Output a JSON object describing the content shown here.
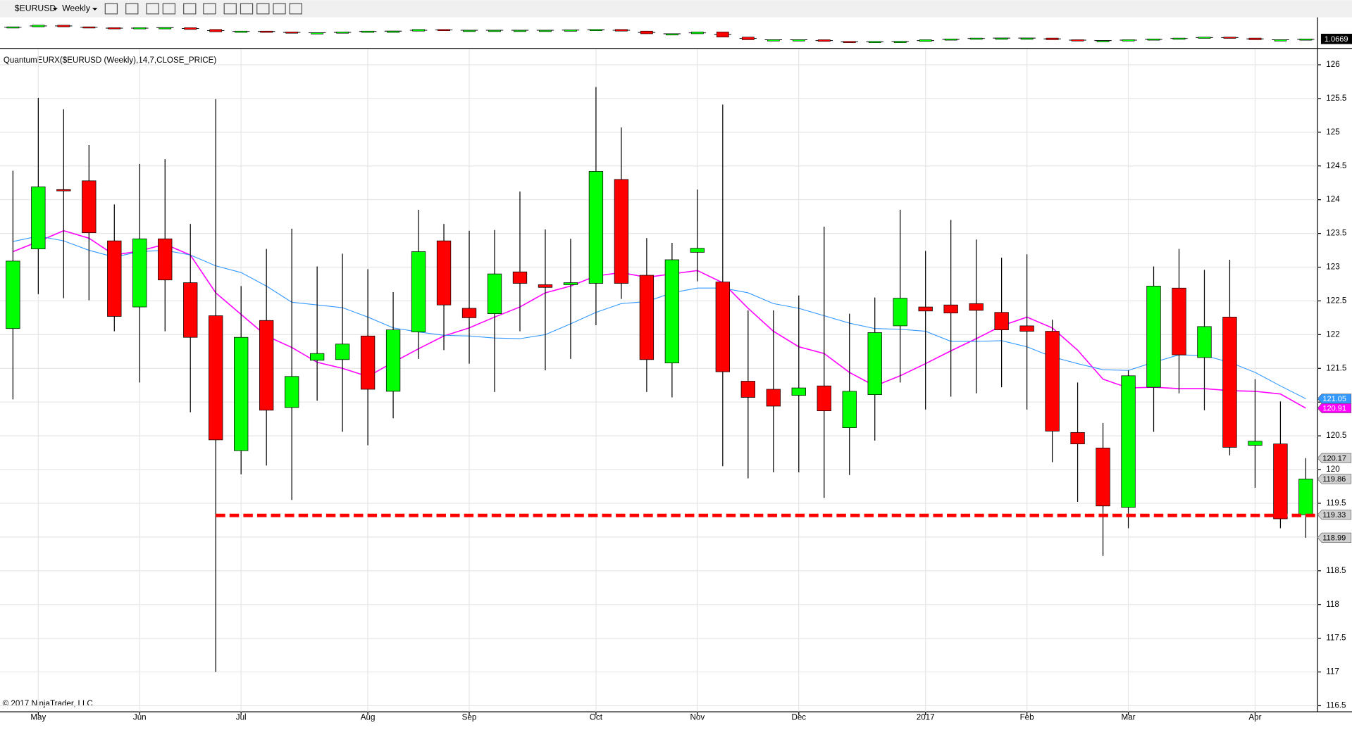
{
  "toolbar": {
    "symbol": "$EURUSD",
    "period": "Weekly"
  },
  "copyright": "© 2017 NinjaTrader, LLC",
  "chart_data": [
    {
      "type": "candlestick-mini",
      "up_color": "#00ff00",
      "down_color": "#ff0000",
      "ylim": [
        1.015,
        1.1866
      ],
      "open": [
        1.135,
        1.14,
        1.15,
        1.14,
        1.135,
        1.129,
        1.135,
        1.135,
        1.124,
        1.11,
        1.114,
        1.109,
        1.104,
        1.104,
        1.109,
        1.114,
        1.114,
        1.124,
        1.119,
        1.119,
        1.119,
        1.119,
        1.119,
        1.121,
        1.124,
        1.114,
        1.098,
        1.098,
        1.109,
        1.078,
        1.062,
        1.062,
        1.062,
        1.052,
        1.046,
        1.052,
        1.052,
        1.062,
        1.067,
        1.072,
        1.072,
        1.072,
        1.062,
        1.057,
        1.057,
        1.062,
        1.067,
        1.072,
        1.078,
        1.072,
        1.062,
        1.062
      ],
      "close": [
        1.14,
        1.15,
        1.14,
        1.135,
        1.129,
        1.135,
        1.135,
        1.124,
        1.11,
        1.114,
        1.109,
        1.104,
        1.104,
        1.109,
        1.114,
        1.114,
        1.124,
        1.119,
        1.119,
        1.119,
        1.119,
        1.119,
        1.121,
        1.124,
        1.114,
        1.098,
        1.098,
        1.109,
        1.078,
        1.062,
        1.062,
        1.062,
        1.052,
        1.046,
        1.052,
        1.052,
        1.062,
        1.067,
        1.072,
        1.072,
        1.072,
        1.062,
        1.057,
        1.057,
        1.062,
        1.067,
        1.072,
        1.078,
        1.072,
        1.062,
        1.062,
        1.0669
      ]
    },
    {
      "type": "candlestick",
      "subtitle": "QuantumEURX($EURUSD (Weekly),14,7,CLOSE_PRICE)",
      "up_color": "#00ff00",
      "down_color": "#ff0000",
      "grid": true,
      "categories": [
        null,
        "May",
        null,
        null,
        null,
        "Jun",
        null,
        null,
        null,
        "Jul",
        null,
        null,
        null,
        null,
        "Aug",
        null,
        null,
        null,
        "Sep",
        null,
        null,
        null,
        null,
        "Oct",
        null,
        null,
        null,
        "Nov",
        null,
        null,
        null,
        "Dec",
        null,
        null,
        null,
        null,
        "2017",
        null,
        null,
        null,
        "Feb",
        null,
        null,
        null,
        "Mar",
        null,
        null,
        null,
        null,
        "Apr",
        null,
        null
      ],
      "open": [
        122.09,
        123.27,
        124.15,
        124.28,
        123.39,
        122.41,
        123.42,
        122.77,
        122.28,
        120.28,
        122.21,
        120.92,
        121.62,
        121.63,
        121.98,
        121.16,
        122.04,
        123.39,
        122.39,
        122.31,
        122.93,
        122.74,
        122.74,
        122.76,
        124.3,
        122.88,
        121.58,
        123.22,
        122.78,
        121.31,
        121.19,
        121.1,
        121.24,
        120.62,
        121.11,
        122.13,
        122.41,
        122.44,
        122.46,
        122.33,
        122.13,
        122.05,
        120.55,
        120.32,
        119.44,
        121.22,
        122.69,
        121.66,
        122.26,
        120.36,
        120.38,
        119.33
      ],
      "high": [
        124.43,
        125.51,
        125.34,
        124.81,
        123.93,
        124.53,
        124.6,
        123.64,
        125.49,
        122.72,
        123.27,
        123.57,
        123.01,
        123.2,
        122.97,
        122.63,
        123.85,
        123.64,
        123.54,
        123.55,
        124.12,
        123.56,
        123.42,
        125.67,
        125.07,
        123.43,
        123.36,
        124.15,
        125.41,
        122.36,
        122.36,
        122.58,
        123.6,
        122.31,
        122.55,
        123.85,
        123.24,
        123.7,
        123.41,
        123.14,
        123.19,
        122.22,
        121.29,
        120.69,
        121.47,
        123.01,
        123.27,
        122.96,
        123.11,
        121.34,
        121.01,
        120.17
      ],
      "low": [
        121.04,
        122.6,
        122.54,
        122.51,
        122.05,
        121.29,
        122.05,
        120.85,
        117.0,
        119.93,
        120.06,
        119.55,
        121.02,
        120.56,
        120.36,
        120.76,
        121.64,
        121.77,
        121.57,
        121.15,
        122.05,
        121.47,
        121.64,
        122.14,
        122.53,
        121.15,
        121.07,
        122.79,
        120.05,
        119.87,
        119.96,
        119.96,
        119.58,
        119.92,
        120.43,
        121.29,
        120.89,
        121.08,
        121.13,
        121.22,
        120.89,
        120.11,
        119.52,
        118.72,
        119.13,
        120.56,
        121.13,
        120.88,
        120.21,
        119.73,
        119.13,
        118.99
      ],
      "close": [
        123.09,
        124.19,
        124.13,
        123.51,
        122.27,
        123.42,
        122.81,
        121.96,
        120.44,
        121.96,
        120.88,
        121.38,
        121.72,
        121.86,
        121.19,
        122.07,
        123.23,
        122.44,
        122.25,
        122.9,
        122.76,
        122.7,
        122.77,
        124.42,
        122.76,
        121.63,
        123.11,
        123.28,
        121.45,
        121.07,
        120.94,
        121.21,
        120.87,
        121.16,
        122.03,
        122.54,
        122.35,
        122.32,
        122.36,
        122.07,
        122.05,
        120.57,
        120.38,
        119.46,
        121.39,
        122.72,
        121.7,
        122.12,
        120.33,
        120.42,
        119.27,
        119.86
      ],
      "overlays": [
        {
          "color": "#ff00ff",
          "values": [
            123.23,
            123.38,
            123.54,
            123.43,
            123.18,
            123.24,
            123.34,
            123.18,
            122.62,
            122.3,
            121.98,
            121.81,
            121.59,
            121.5,
            121.38,
            121.59,
            121.79,
            121.98,
            122.1,
            122.26,
            122.41,
            122.62,
            122.72,
            122.87,
            122.92,
            122.85,
            122.9,
            122.95,
            122.77,
            122.39,
            122.05,
            121.82,
            121.72,
            121.44,
            121.24,
            121.39,
            121.57,
            121.76,
            121.94,
            122.13,
            122.26,
            122.1,
            121.77,
            121.34,
            121.21,
            121.22,
            121.2,
            121.2,
            121.17,
            121.16,
            121.12,
            120.91
          ]
        },
        {
          "color": "#3399ff",
          "values": [
            123.38,
            123.46,
            123.39,
            123.25,
            123.15,
            123.23,
            123.25,
            123.18,
            123.02,
            122.92,
            122.72,
            122.48,
            122.44,
            122.4,
            122.26,
            122.1,
            122.04,
            121.99,
            121.98,
            121.95,
            121.94,
            122.0,
            122.16,
            122.33,
            122.46,
            122.49,
            122.62,
            122.69,
            122.69,
            122.62,
            122.46,
            122.39,
            122.28,
            122.17,
            122.09,
            122.08,
            122.05,
            121.9,
            121.9,
            121.91,
            121.82,
            121.67,
            121.57,
            121.48,
            121.47,
            121.59,
            121.7,
            121.69,
            121.59,
            121.44,
            121.24,
            121.05
          ]
        }
      ],
      "support": {
        "value": 119.32,
        "start": 8,
        "color": "#ff0000"
      },
      "ylim": [
        116.41,
        126.23
      ],
      "yticks": [
        116.5,
        117,
        117.5,
        118,
        118.5,
        119,
        119.5,
        120,
        120.5,
        121,
        121.5,
        122,
        122.5,
        123,
        123.5,
        124,
        124.5,
        125,
        125.5,
        126
      ]
    }
  ]
}
